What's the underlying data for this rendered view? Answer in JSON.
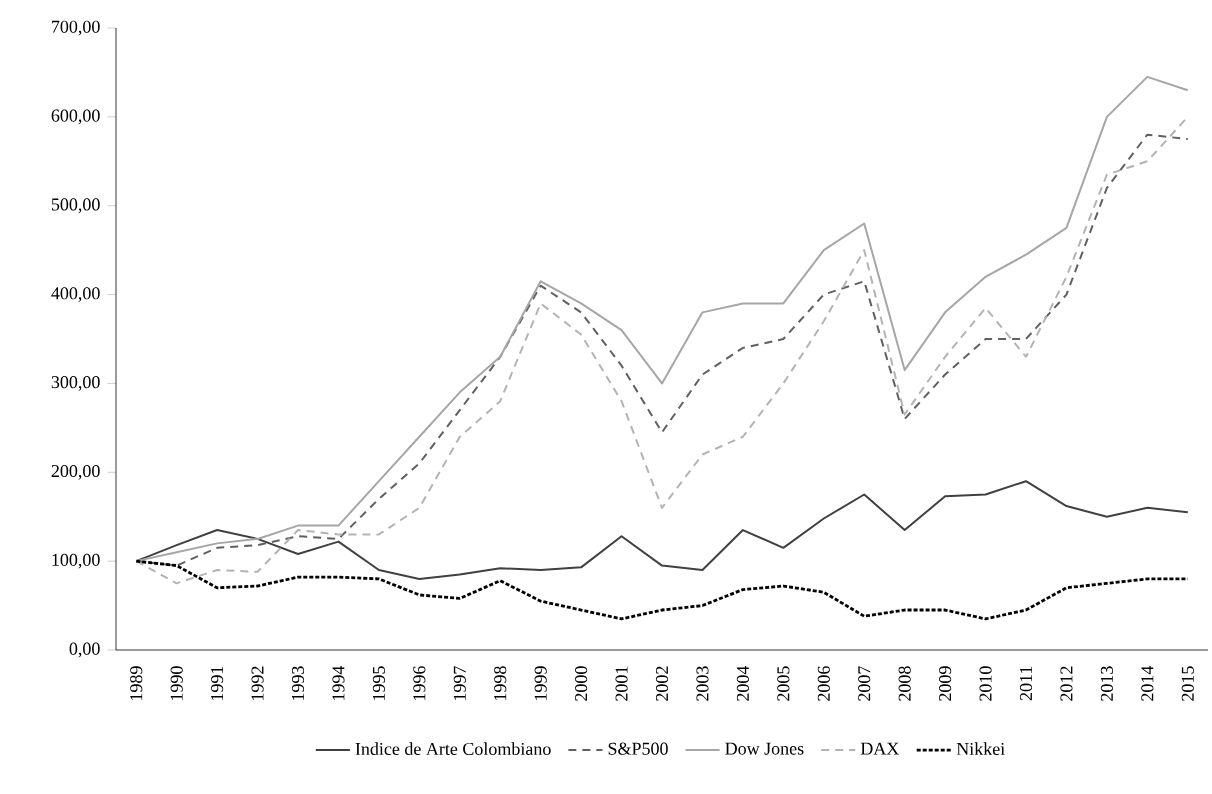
{
  "chart_data": {
    "type": "line",
    "categories": [
      "1989",
      "1990",
      "1991",
      "1992",
      "1993",
      "1994",
      "1995",
      "1996",
      "1997",
      "1998",
      "1999",
      "2000",
      "2001",
      "2002",
      "2003",
      "2004",
      "2005",
      "2006",
      "2007",
      "2008",
      "2009",
      "2010",
      "2011",
      "2012",
      "2013",
      "2014",
      "2015"
    ],
    "series": [
      {
        "name": "Indice de Arte Colombiano",
        "color": "#404040",
        "line_style": "solid",
        "values": [
          100,
          118,
          135,
          125,
          108,
          122,
          90,
          80,
          85,
          92,
          90,
          93,
          128,
          95,
          90,
          135,
          115,
          148,
          175,
          135,
          173,
          175,
          190,
          162,
          150,
          160,
          155
        ]
      },
      {
        "name": "S&P500",
        "color": "#606060",
        "line_style": "dashed",
        "values": [
          100,
          95,
          115,
          118,
          128,
          125,
          170,
          210,
          270,
          330,
          410,
          380,
          320,
          245,
          310,
          340,
          350,
          400,
          415,
          260,
          310,
          350,
          350,
          400,
          520,
          580,
          575
        ]
      },
      {
        "name": "Dow Jones",
        "color": "#a6a6a6",
        "line_style": "solid",
        "values": [
          100,
          110,
          120,
          125,
          140,
          140,
          190,
          240,
          290,
          330,
          415,
          390,
          360,
          300,
          380,
          390,
          390,
          450,
          480,
          315,
          380,
          420,
          445,
          475,
          600,
          645,
          630
        ]
      },
      {
        "name": "DAX",
        "color": "#b3b3b3",
        "line_style": "dashed",
        "values": [
          100,
          75,
          90,
          88,
          135,
          130,
          130,
          160,
          240,
          280,
          390,
          355,
          280,
          160,
          220,
          240,
          300,
          370,
          450,
          265,
          330,
          385,
          330,
          420,
          535,
          550,
          600
        ]
      },
      {
        "name": "Nikkei",
        "color": "#000000",
        "line_style": "dotted",
        "values": [
          100,
          95,
          70,
          72,
          82,
          82,
          80,
          62,
          58,
          78,
          55,
          45,
          35,
          45,
          50,
          68,
          72,
          65,
          38,
          45,
          45,
          35,
          45,
          70,
          75,
          80,
          80
        ]
      }
    ],
    "ylim": [
      0,
      700
    ],
    "yticks": [
      {
        "value": 0,
        "label": "0,00"
      },
      {
        "value": 100,
        "label": "100,00"
      },
      {
        "value": 200,
        "label": "200,00"
      },
      {
        "value": 300,
        "label": "300,00"
      },
      {
        "value": 400,
        "label": "400,00"
      },
      {
        "value": 500,
        "label": "500,00"
      },
      {
        "value": 600,
        "label": "600,00"
      },
      {
        "value": 700,
        "label": "700,00"
      }
    ],
    "grid": false,
    "legend": "bottom",
    "marker": "none"
  }
}
